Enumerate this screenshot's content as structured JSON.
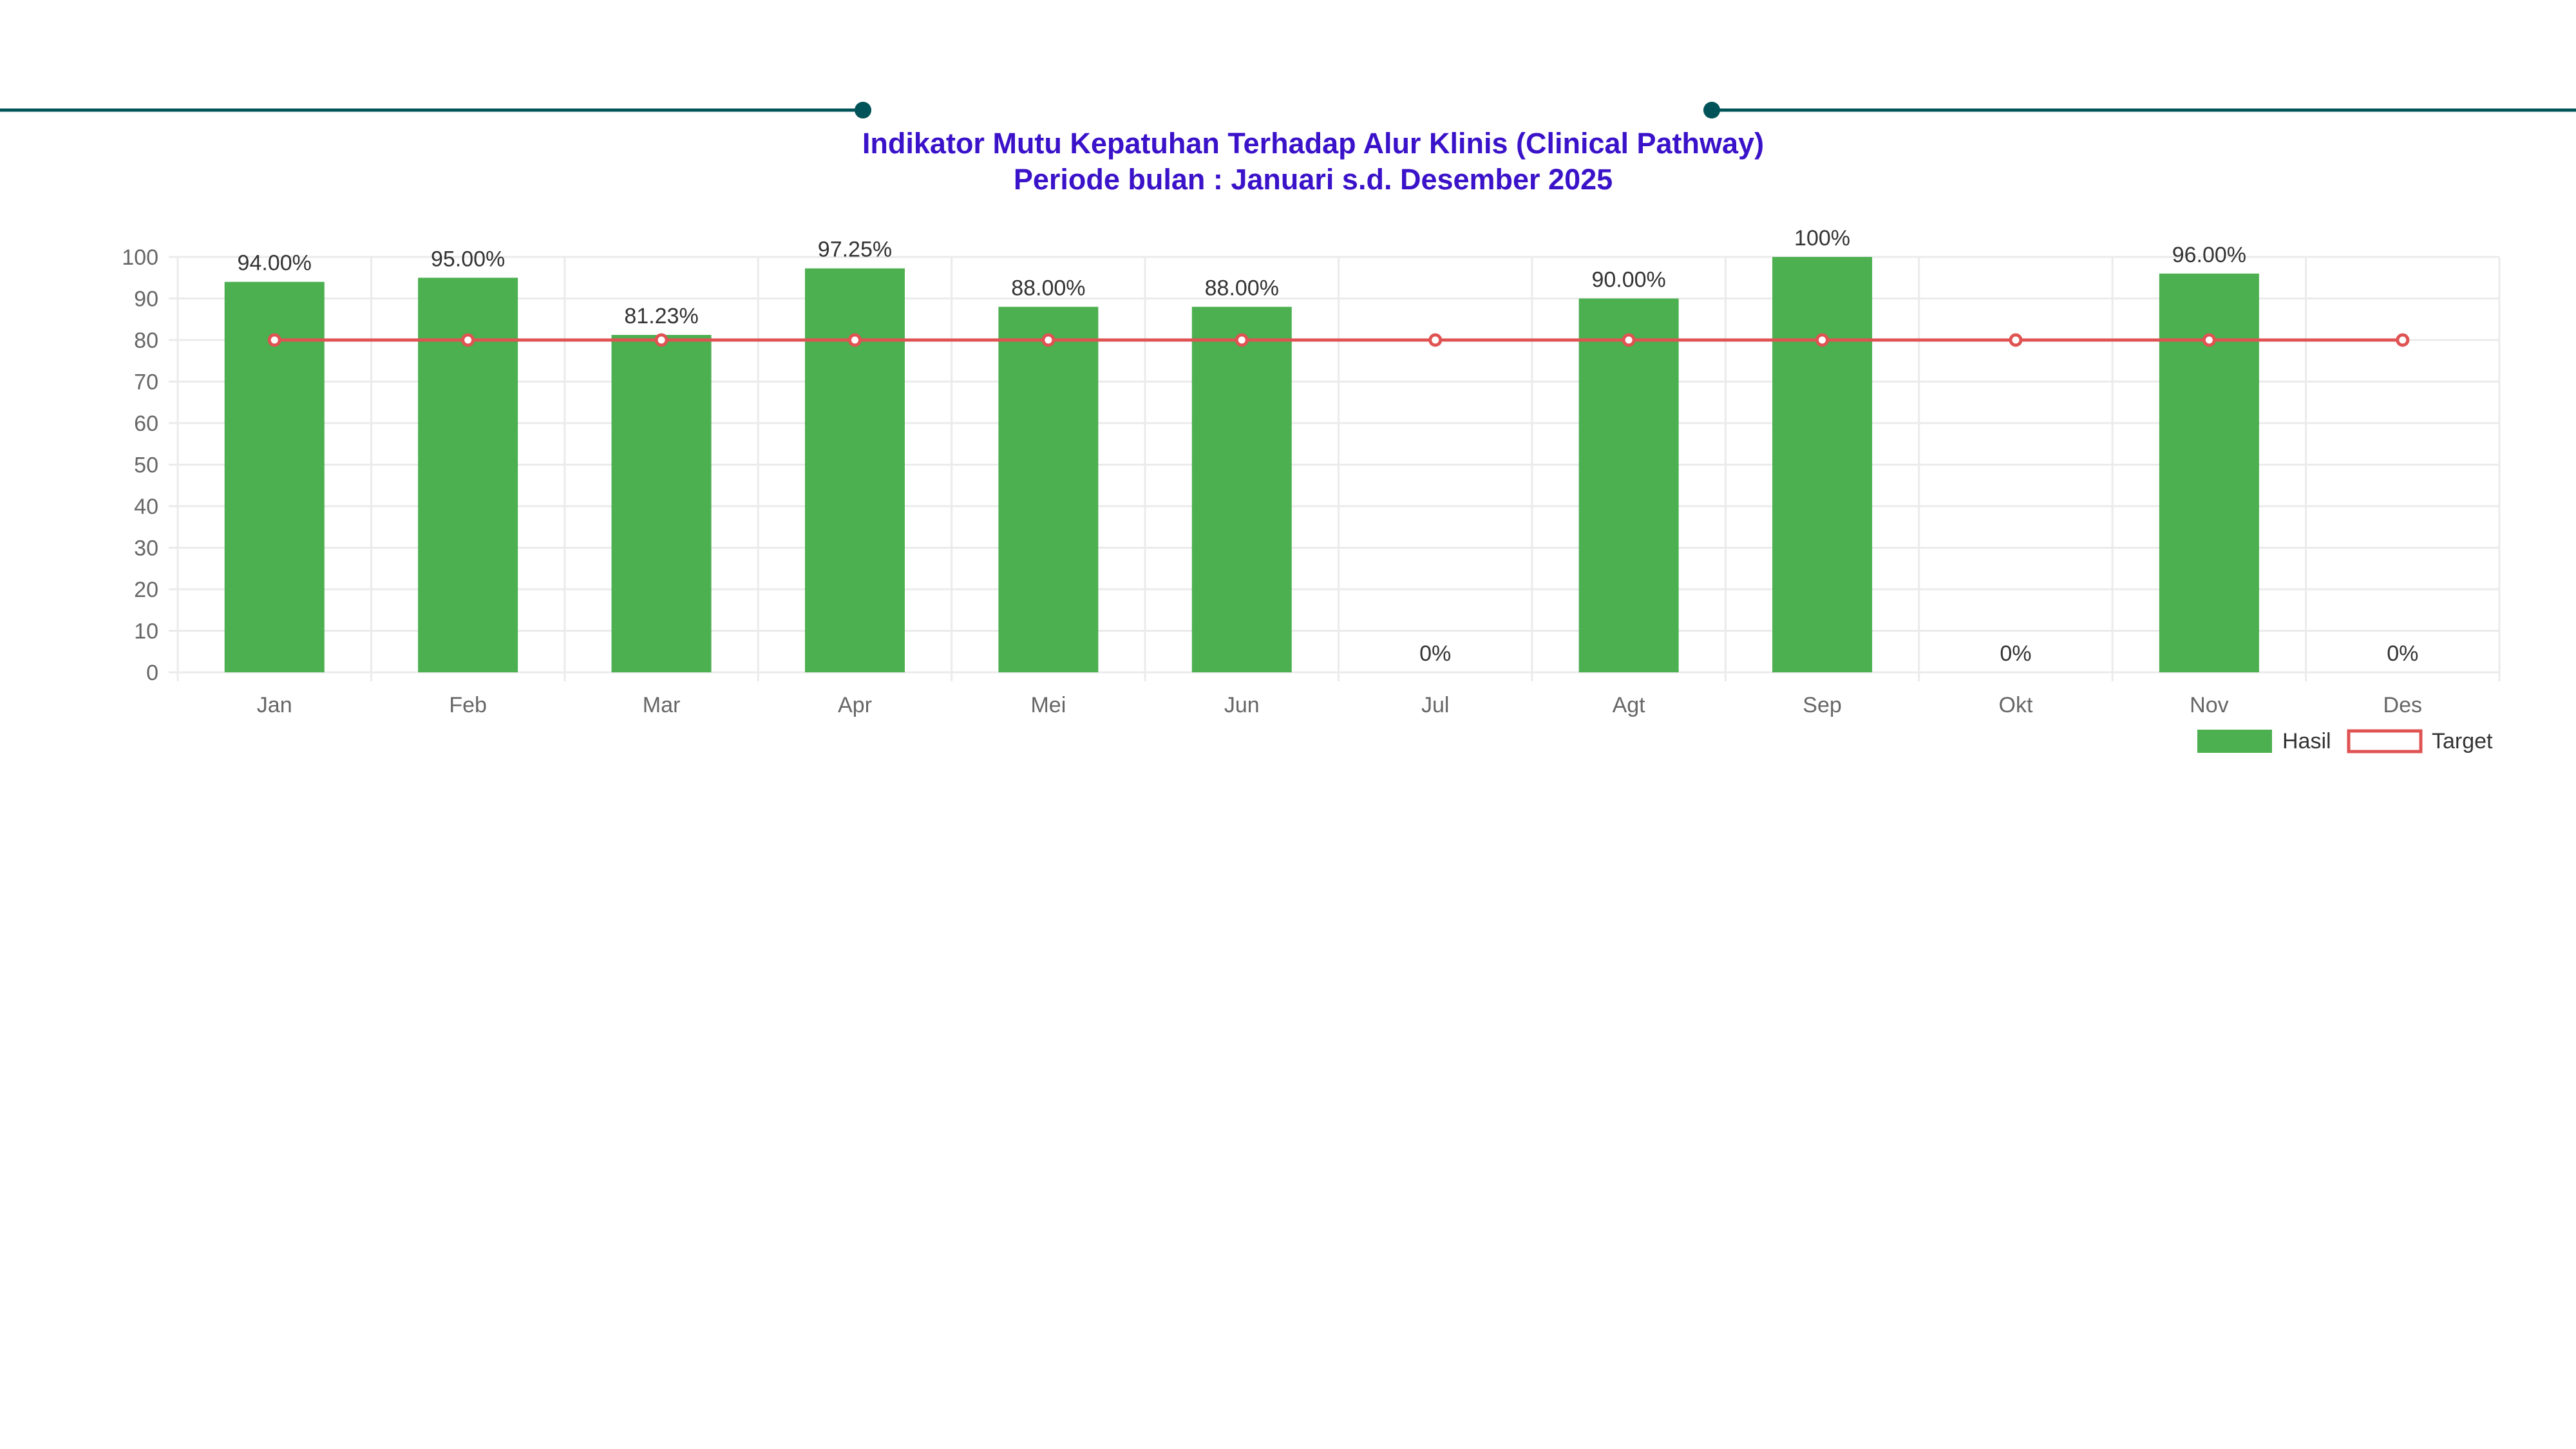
{
  "header": {
    "title": "Indikator Mutu Kepatuhan Terhadap Alur Klinis (Clinical Pathway)",
    "subtitle": "Periode bulan : Januari s.d. Desember 2025"
  },
  "colors": {
    "decor_line": "#005358",
    "title": "#3a12c9",
    "bar": "#4caf50",
    "target": "#e05353",
    "grid": "#ebebeb",
    "tick": "#666666",
    "label": "#333333"
  },
  "chart_data": {
    "type": "bar",
    "categories": [
      "Jan",
      "Feb",
      "Mar",
      "Apr",
      "Mei",
      "Jun",
      "Jul",
      "Agt",
      "Sep",
      "Okt",
      "Nov",
      "Des"
    ],
    "series": [
      {
        "name": "Hasil",
        "type": "bar",
        "values": [
          94.0,
          95.0,
          81.23,
          97.25,
          88.0,
          88.0,
          0,
          90.0,
          100,
          0,
          96.0,
          0
        ],
        "labels": [
          "94.00%",
          "95.00%",
          "81.23%",
          "97.25%",
          "88.00%",
          "88.00%",
          "0%",
          "90.00%",
          "100%",
          "0%",
          "96.00%",
          "0%"
        ]
      },
      {
        "name": "Target",
        "type": "line",
        "values": [
          80,
          80,
          80,
          80,
          80,
          80,
          80,
          80,
          80,
          80,
          80,
          80
        ]
      }
    ],
    "ylim": [
      0,
      100
    ],
    "yticks": [
      0,
      10,
      20,
      30,
      40,
      50,
      60,
      70,
      80,
      90,
      100
    ],
    "xlabel": "",
    "ylabel": "",
    "grid": true,
    "legend_position": "bottom-right"
  }
}
